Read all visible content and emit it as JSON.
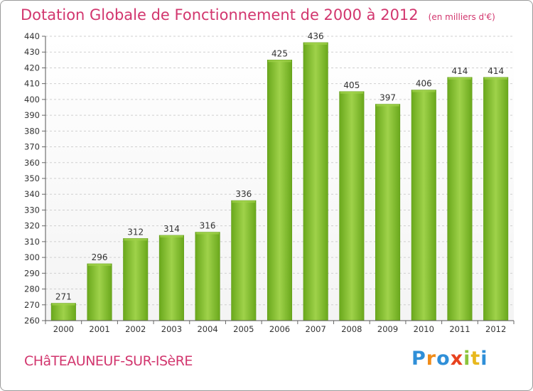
{
  "chart_data": {
    "type": "bar",
    "title": "Dotation Globale de Fonctionnement de 2000 à 2012",
    "subtitle": "(en milliers d'€)",
    "categories": [
      "2000",
      "2001",
      "2002",
      "2003",
      "2004",
      "2005",
      "2006",
      "2007",
      "2008",
      "2009",
      "2010",
      "2011",
      "2012"
    ],
    "values": [
      271,
      296,
      312,
      314,
      316,
      336,
      425,
      436,
      405,
      397,
      406,
      414,
      414
    ],
    "ylim": [
      260,
      440
    ],
    "ytick_step": 10,
    "grid": true,
    "bar_color": "#7fbf2a",
    "bar_color_light": "#9fd24a",
    "bar_color_dark": "#5f9a18",
    "grid_color": "#cfcfcf"
  },
  "footer": {
    "commune": "CHâTEAUNEUF-SUR-ISèRE",
    "logo_text": "Proxiti"
  },
  "colors": {
    "title": "#d2366e",
    "axis_text": "#333333"
  }
}
